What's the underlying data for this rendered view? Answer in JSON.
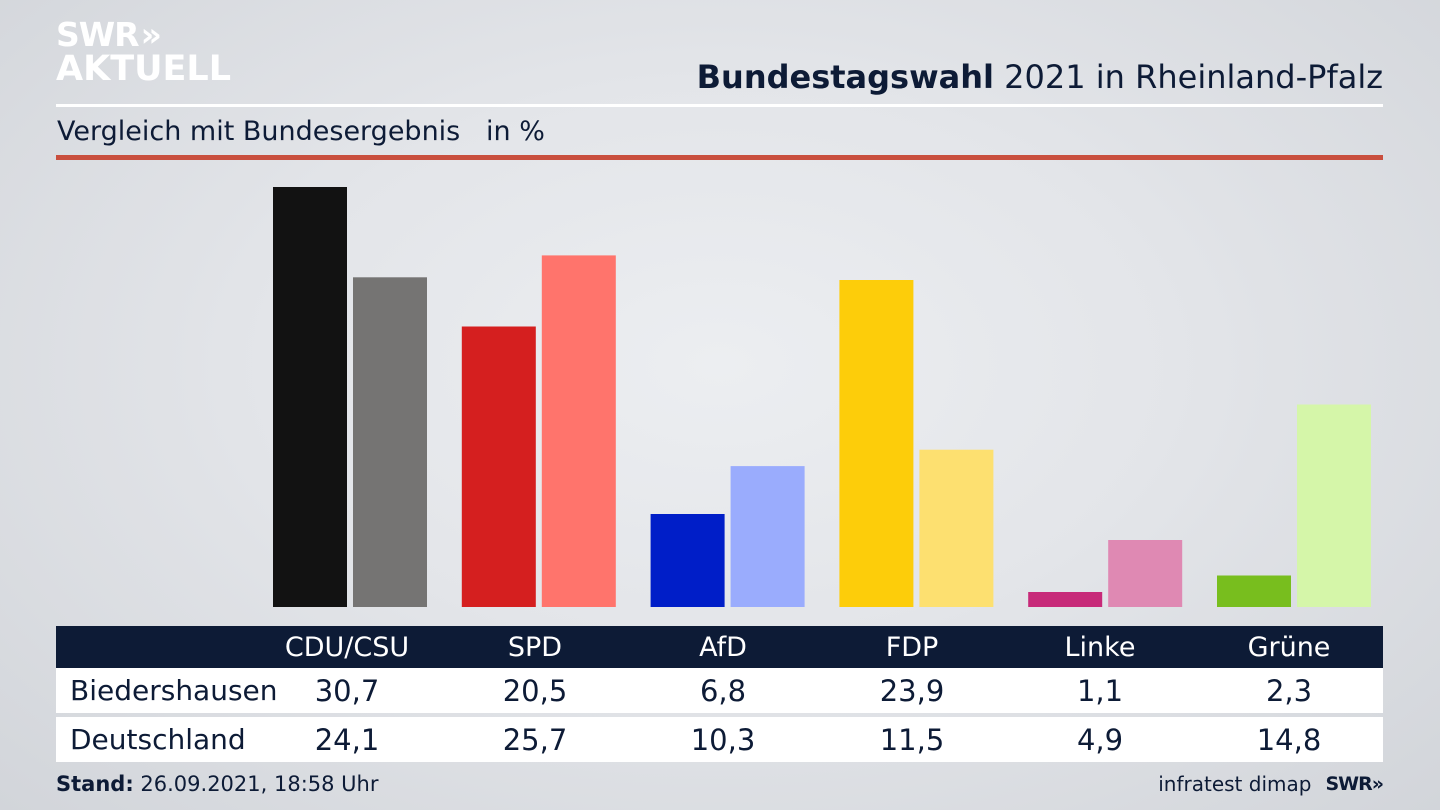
{
  "logo": {
    "line1": "SWR",
    "line1_chevrons": "»",
    "line2": "AKTUELL"
  },
  "header": {
    "title_bold": "Bundestagswahl",
    "title_rest": " 2021 in Rheinland-Pfalz",
    "subtitle": "Vergleich mit Bundesergebnis   in %"
  },
  "table": {
    "columns": [
      "CDU/CSU",
      "SPD",
      "AfD",
      "FDP",
      "Linke",
      "Grüne"
    ],
    "rows": [
      {
        "label": "Biedershausen",
        "values": [
          "30,7",
          "20,5",
          "6,8",
          "23,9",
          "1,1",
          "2,3"
        ]
      },
      {
        "label": "Deutschland",
        "values": [
          "24,1",
          "25,7",
          "10,3",
          "11,5",
          "4,9",
          "14,8"
        ]
      }
    ]
  },
  "footer": {
    "stand_label": "Stand:",
    "stand_value": " 26.09.2021, 18:58 Uhr",
    "source": "infratest dimap",
    "brand": "SWR",
    "brand_chevrons": "»"
  },
  "chart_data": {
    "type": "bar",
    "title": "Bundestagswahl 2021 in Rheinland-Pfalz",
    "subtitle": "Vergleich mit Bundesergebnis in %",
    "xlabel": "",
    "ylabel": "in %",
    "categories": [
      "CDU/CSU",
      "SPD",
      "AfD",
      "FDP",
      "Linke",
      "Grüne"
    ],
    "series": [
      {
        "name": "Biedershausen",
        "values": [
          30.7,
          20.5,
          6.8,
          23.9,
          1.1,
          2.3
        ],
        "colors": [
          "#121212",
          "#d51f1f",
          "#001ec8",
          "#fdcd0a",
          "#c72a79",
          "#78be1e"
        ]
      },
      {
        "name": "Deutschland",
        "values": [
          24.1,
          25.7,
          10.3,
          11.5,
          4.9,
          14.8
        ],
        "colors": [
          "#757473",
          "#ff746c",
          "#9aacfd",
          "#fde070",
          "#df89b3",
          "#d5f6a9"
        ]
      }
    ],
    "ylim": [
      0,
      30.7
    ],
    "grid": false,
    "legend": "table-below"
  }
}
